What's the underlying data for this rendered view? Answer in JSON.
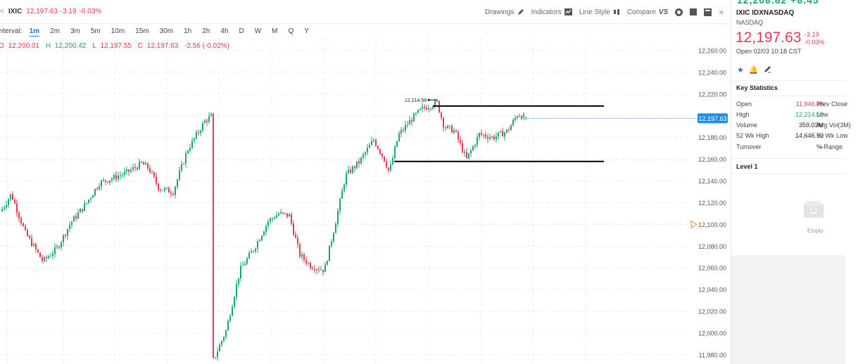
{
  "header": {
    "chevron": "<",
    "symbol": "IXIC",
    "price": "12,197.63",
    "change": "-3.19",
    "change_pct": "-0.03%",
    "tools": {
      "drawings": "Drawings",
      "indicators": "Indicators",
      "line_style": "Line Style",
      "compare": "Compare",
      "compare_logo": "VS",
      "more": "»"
    }
  },
  "interval": {
    "label": "Interval:",
    "options": [
      "1m",
      "2m",
      "3m",
      "5m",
      "10m",
      "15m",
      "30m",
      "1h",
      "2h",
      "4h",
      "D",
      "W",
      "M",
      "Q",
      "Y"
    ],
    "active": "1m"
  },
  "ohlc": {
    "o_label": "O",
    "o": "12,200.01",
    "h_label": "H",
    "h": "12,200.42",
    "l_label": "L",
    "l": "12,197.55",
    "c_label": "C",
    "c": "12,197.63",
    "change": "-2.56 (-0.02%)"
  },
  "chart_data": {
    "type": "candlestick",
    "y_axis_labels": [
      "12,260.00",
      "12,240.00",
      "12,220.00",
      "12,200.00",
      "12,180.00",
      "12,160.00",
      "12,140.00",
      "12,120.00",
      "12,100.00",
      "12,080.00",
      "12,060.00",
      "12,040.00",
      "12,020.00",
      "12,000.00",
      "11,980.00"
    ],
    "ylim": [
      11975,
      12270
    ],
    "current_price": 12197.63,
    "current_price_label": "12,197.63",
    "high_marker": 12214.58,
    "high_marker_label": "12,214.58",
    "resistance_line": 12209,
    "support_line": 12158,
    "pending_marker_price": 12100,
    "colors": {
      "up": "#17a86b",
      "down": "#e23b52",
      "price_tag": "#1a8ee8"
    }
  },
  "side_panel": {
    "top_cut_text": "12,208.82 +8.45",
    "title": "IXIC IDXNASDAQ",
    "exchange": "NASDAQ",
    "price": "12,197.63",
    "change": "-3.19",
    "change_pct": "-0.03%",
    "open_time": "Open 02/03 10:18 CST",
    "key_stats_title": "Key Statistics",
    "stats": [
      {
        "label": "Open",
        "value": "11,946.86",
        "value_color": "red",
        "label2": "Prev Close"
      },
      {
        "label": "High",
        "value": "12,214.58",
        "value_color": "green",
        "label2": "Low"
      },
      {
        "label": "Volume",
        "value": "359.03M",
        "value_color": "dark",
        "label2": "Avg Vol(3M)"
      },
      {
        "label": "52 Wk High",
        "value": "14,646.90",
        "value_color": "dark",
        "label2": "52 Wk Low"
      },
      {
        "label": "Turnover",
        "value": "--",
        "value_color": "dark",
        "label2": "% Range"
      }
    ],
    "level1_title": "Level 1",
    "empty_text": "Empty"
  }
}
